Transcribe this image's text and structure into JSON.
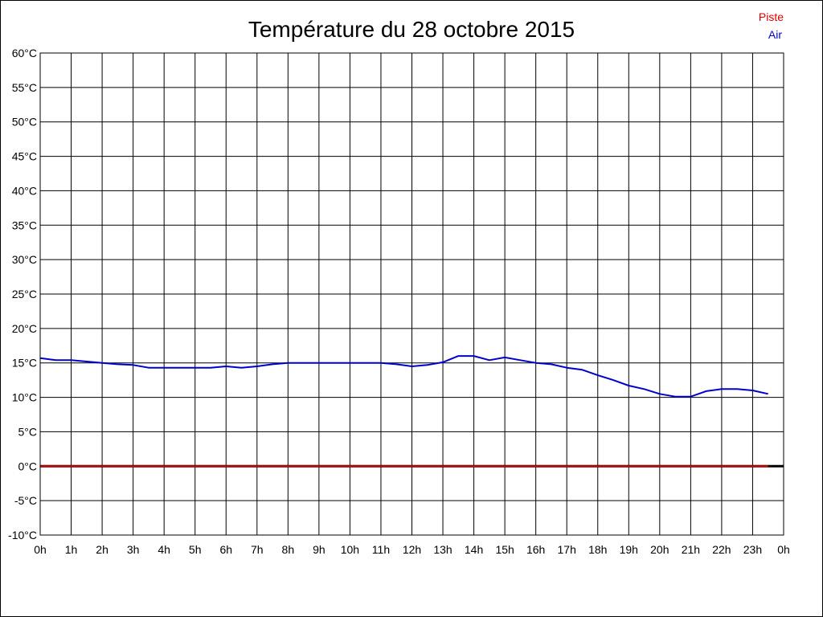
{
  "chart_data": {
    "type": "line",
    "title": "Température du 28 octobre 2015",
    "xlabel": "",
    "ylabel": "",
    "x_ticks": [
      "0h",
      "1h",
      "2h",
      "3h",
      "4h",
      "5h",
      "6h",
      "7h",
      "8h",
      "9h",
      "10h",
      "11h",
      "12h",
      "13h",
      "14h",
      "15h",
      "16h",
      "17h",
      "18h",
      "19h",
      "20h",
      "21h",
      "22h",
      "23h",
      "0h"
    ],
    "y_ticks": [
      "-10°C",
      "-5°C",
      "0°C",
      "5°C",
      "10°C",
      "15°C",
      "20°C",
      "25°C",
      "30°C",
      "35°C",
      "40°C",
      "45°C",
      "50°C",
      "55°C",
      "60°C"
    ],
    "ylim": [
      -10,
      60
    ],
    "xlim": [
      0,
      24
    ],
    "grid": true,
    "legend_position": "top-right",
    "legend": [
      {
        "name": "Piste",
        "color": "#dd0000"
      },
      {
        "name": "Air",
        "color": "#0000cc"
      }
    ],
    "series": [
      {
        "name": "Piste",
        "color": "#dd0000",
        "x": [
          0,
          23.5
        ],
        "values": [
          0,
          0
        ]
      },
      {
        "name": "Air",
        "color": "#0000cc",
        "x": [
          0,
          0.5,
          1,
          1.5,
          2,
          2.5,
          3,
          3.5,
          4,
          4.5,
          5,
          5.5,
          6,
          6.5,
          7,
          7.5,
          8,
          8.5,
          9,
          9.5,
          10,
          10.5,
          11,
          11.5,
          12,
          12.5,
          13,
          13.5,
          14,
          14.5,
          15,
          15.5,
          16,
          16.5,
          17,
          17.5,
          18,
          18.5,
          19,
          19.5,
          20,
          20.5,
          21,
          21.5,
          22,
          22.5,
          23,
          23.5
        ],
        "values": [
          15.7,
          15.4,
          15.4,
          15.2,
          15.0,
          14.8,
          14.7,
          14.3,
          14.3,
          14.3,
          14.3,
          14.3,
          14.5,
          14.3,
          14.5,
          14.8,
          15.0,
          15.0,
          15.0,
          15.0,
          15.0,
          15.0,
          15.0,
          14.8,
          14.5,
          14.7,
          15.1,
          16.0,
          16.0,
          15.4,
          15.8,
          15.4,
          15.0,
          14.8,
          14.3,
          14.0,
          13.2,
          12.5,
          11.7,
          11.2,
          10.5,
          10.1,
          10.1,
          10.9,
          11.2,
          11.2,
          11.0,
          10.5
        ]
      }
    ]
  }
}
